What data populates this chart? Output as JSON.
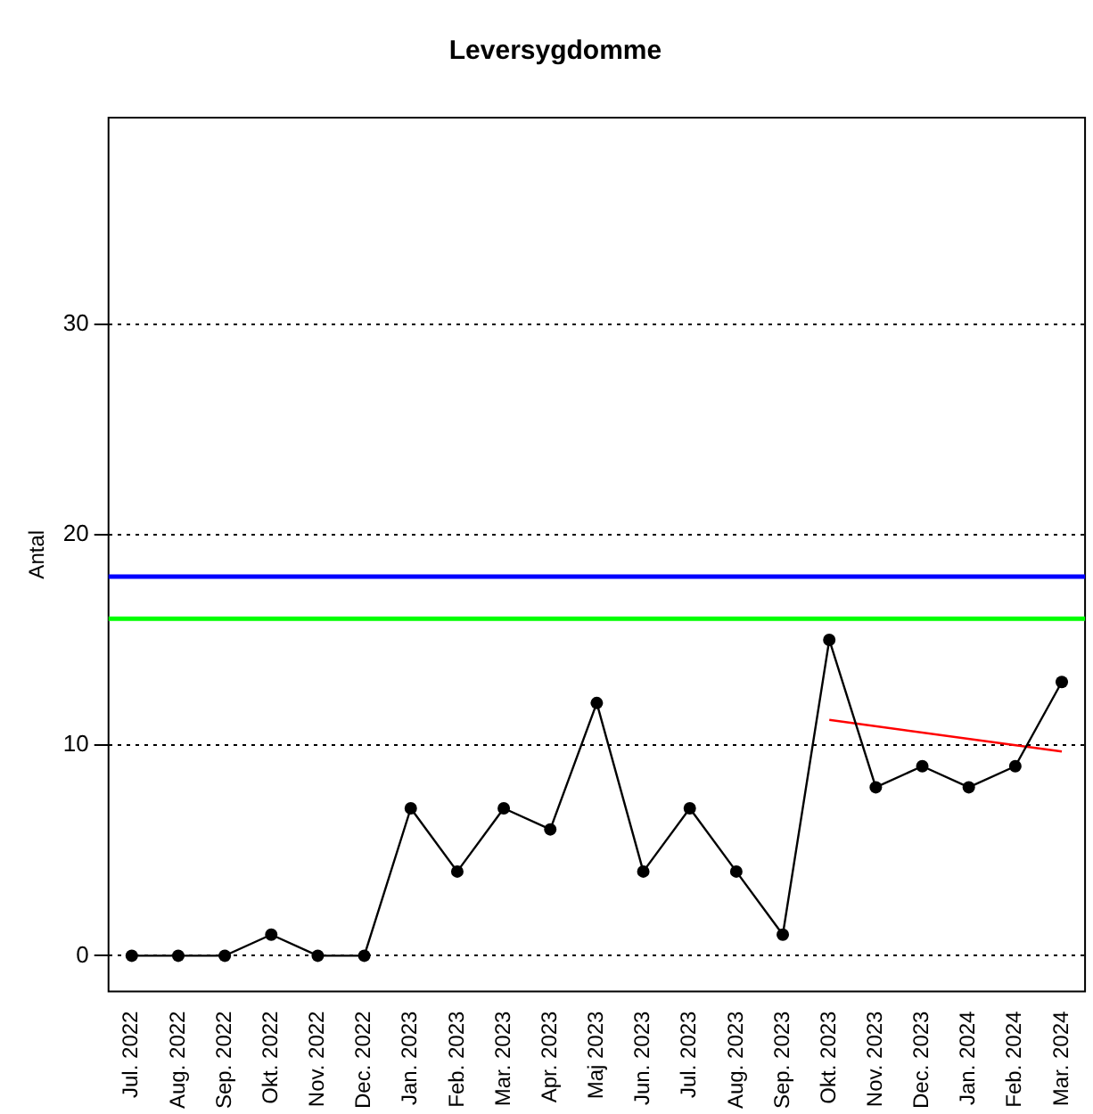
{
  "chart_data": {
    "type": "line",
    "title": "Leversygdomme",
    "ylabel": "Antal",
    "categories": [
      "Jul. 2022",
      "Aug. 2022",
      "Sep. 2022",
      "Okt. 2022",
      "Nov. 2022",
      "Dec. 2022",
      "Jan. 2023",
      "Feb. 2023",
      "Mar. 2023",
      "Apr. 2023",
      "Maj 2023",
      "Jun. 2023",
      "Jul. 2023",
      "Aug. 2023",
      "Sep. 2023",
      "Okt. 2023",
      "Nov. 2023",
      "Dec. 2023",
      "Jan. 2024",
      "Feb. 2024",
      "Mar. 2024"
    ],
    "series": [
      {
        "color": "#000000",
        "values": [
          0,
          0,
          0,
          1,
          0,
          0,
          7,
          4,
          7,
          6,
          12,
          4,
          7,
          4,
          1,
          15,
          8,
          9,
          8,
          9,
          13
        ]
      },
      {
        "color": "#ff0000",
        "marker": "none",
        "x": [
          "Okt. 2023",
          "Mar. 2024"
        ],
        "values": [
          11.2,
          9.7
        ]
      }
    ],
    "ylim": [
      -1.7,
      39.8
    ],
    "yticks": [
      0,
      10,
      20,
      30
    ],
    "grid": "y",
    "marker": "circle",
    "line_style": "solid",
    "legend": false,
    "ref_lines": [
      {
        "axis": "y",
        "value": 18,
        "color": "#0000ff"
      },
      {
        "axis": "y",
        "value": 16,
        "color": "#00ff00"
      }
    ]
  }
}
